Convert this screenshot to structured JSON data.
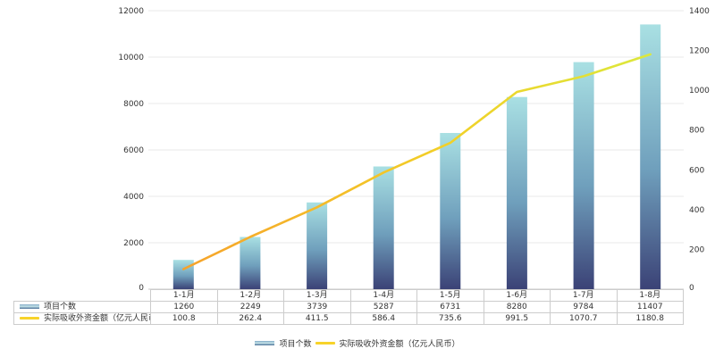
{
  "chart_data": {
    "type": "bar",
    "subtype": "combo-bar-line-dual-axis",
    "title": "",
    "categories": [
      "1-1月",
      "1-2月",
      "1-3月",
      "1-4月",
      "1-5月",
      "1-6月",
      "1-7月",
      "1-8月"
    ],
    "series": [
      {
        "name": "项目个数",
        "type": "bar",
        "axis": "left",
        "values": [
          1260,
          2249,
          3739,
          5287,
          6731,
          8280,
          9784,
          11407
        ]
      },
      {
        "name": "实际吸收外资金额（亿元人民币）",
        "type": "line",
        "axis": "right",
        "values": [
          100.8,
          262.4,
          411.5,
          586.4,
          735.6,
          991.5,
          1070.7,
          1180.8
        ]
      }
    ],
    "left_axis": {
      "min": 0,
      "max": 12000,
      "step": 2000,
      "ticks": [
        "0",
        "2000",
        "4000",
        "6000",
        "8000",
        "10000",
        "12000"
      ]
    },
    "right_axis": {
      "min": 0,
      "max": 1400,
      "step": 200,
      "ticks": [
        "0",
        "200",
        "400",
        "600",
        "800",
        "1000",
        "1200",
        "1400"
      ]
    },
    "grid": true,
    "legend_position": "bottom",
    "data_table_shown": true,
    "colors": {
      "bar_gradient_top": "#a9e0e3",
      "bar_gradient_mid": "#6f9fbc",
      "bar_gradient_bottom": "#3b4276",
      "line_gradient_start": "#f6a32b",
      "line_gradient_mid": "#f2cf27",
      "line_gradient_end": "#dce83c",
      "gridline": "#e8e8e8",
      "axis_line": "#c9c9c9",
      "table_border": "#cccccc",
      "text": "#333333",
      "legend_line_swatch": "#f7d32a"
    }
  }
}
